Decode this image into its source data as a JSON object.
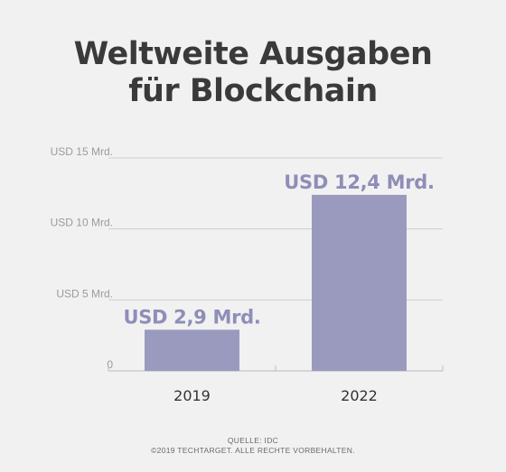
{
  "title_lines": [
    "Weltweite Ausgaben",
    "für Blockchain"
  ],
  "chart_data": {
    "type": "bar",
    "title": "Weltweite Ausgaben für Blockchain",
    "categories": [
      "2019",
      "2022"
    ],
    "values": [
      2.9,
      12.4
    ],
    "value_labels": [
      "USD 2,9 Mrd.",
      "USD 12,4 Mrd."
    ],
    "y_ticks": [
      {
        "value": 0,
        "label": "0"
      },
      {
        "value": 5,
        "label": "USD 5 Mrd."
      },
      {
        "value": 10,
        "label": "USD 10 Mrd."
      },
      {
        "value": 15,
        "label": "USD 15 Mrd."
      }
    ],
    "ylim": [
      0,
      15
    ],
    "grid": true,
    "xlabel": "",
    "ylabel": "",
    "bar_color": "#9a9abf",
    "label_color": "#8e8eb8"
  },
  "footer": {
    "source": "QUELLE: IDC",
    "copyright": "©2019 TECHTARGET. ALLE RECHTE VORBEHALTEN."
  }
}
